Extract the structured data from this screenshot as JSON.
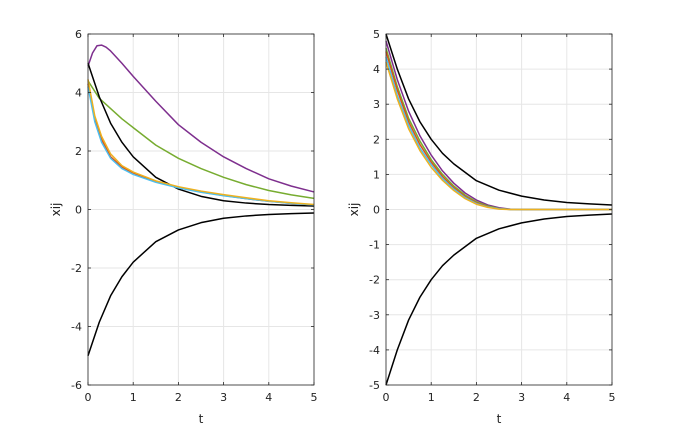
{
  "chart_data": [
    {
      "type": "line",
      "xlabel": "t",
      "ylabel": "xij",
      "xlim": [
        0,
        5
      ],
      "ylim": [
        -6,
        6
      ],
      "xticks": [
        "0",
        "1",
        "2",
        "3",
        "4",
        "5"
      ],
      "yticks": [
        "-6",
        "-4",
        "-2",
        "0",
        "2",
        "4",
        "6"
      ],
      "grid": true,
      "series": [
        {
          "color": "#7e2f8e",
          "x": [
            0,
            0.1,
            0.2,
            0.3,
            0.4,
            0.5,
            0.75,
            1,
            1.5,
            2,
            2.5,
            3,
            3.5,
            4,
            4.5,
            5
          ],
          "y": [
            4.9,
            5.35,
            5.6,
            5.62,
            5.55,
            5.42,
            5.0,
            4.55,
            3.7,
            2.9,
            2.3,
            1.8,
            1.4,
            1.05,
            0.8,
            0.6
          ]
        },
        {
          "color": "#77ac30",
          "x": [
            0,
            0.25,
            0.5,
            0.75,
            1,
            1.5,
            2,
            2.5,
            3,
            3.5,
            4,
            4.5,
            5
          ],
          "y": [
            4.4,
            3.8,
            3.45,
            3.1,
            2.8,
            2.2,
            1.75,
            1.4,
            1.1,
            0.85,
            0.65,
            0.5,
            0.38
          ]
        },
        {
          "color": "#000000",
          "x": [
            0,
            0.25,
            0.5,
            0.75,
            1,
            1.5,
            2,
            2.5,
            3,
            3.5,
            4,
            4.5,
            5
          ],
          "y": [
            5.0,
            3.85,
            2.95,
            2.3,
            1.8,
            1.1,
            0.7,
            0.45,
            0.3,
            0.22,
            0.17,
            0.14,
            0.12
          ]
        },
        {
          "color": "#d95319",
          "x": [
            0,
            0.15,
            0.3,
            0.5,
            0.75,
            1,
            1.5,
            2,
            2.5,
            3,
            3.5,
            4,
            4.5,
            5
          ],
          "y": [
            4.3,
            3.1,
            2.4,
            1.8,
            1.45,
            1.25,
            0.95,
            0.75,
            0.6,
            0.48,
            0.37,
            0.28,
            0.21,
            0.16
          ]
        },
        {
          "color": "#4dbeee",
          "x": [
            0,
            0.15,
            0.3,
            0.5,
            0.75,
            1,
            1.5,
            2,
            2.5,
            3,
            3.5,
            4,
            4.5,
            5
          ],
          "y": [
            4.2,
            3.0,
            2.3,
            1.75,
            1.4,
            1.2,
            0.93,
            0.74,
            0.59,
            0.47,
            0.37,
            0.28,
            0.21,
            0.16
          ]
        },
        {
          "color": "#edb120",
          "x": [
            0,
            0.15,
            0.3,
            0.5,
            0.75,
            1,
            1.5,
            2,
            2.5,
            3,
            3.5,
            4,
            4.5,
            5
          ],
          "y": [
            4.45,
            3.2,
            2.5,
            1.9,
            1.5,
            1.28,
            0.98,
            0.78,
            0.63,
            0.51,
            0.4,
            0.3,
            0.23,
            0.17
          ]
        },
        {
          "color": "#000000",
          "x": [
            0,
            0.25,
            0.5,
            0.75,
            1,
            1.5,
            2,
            2.5,
            3,
            3.5,
            4,
            4.5,
            5
          ],
          "y": [
            -5.0,
            -3.85,
            -2.95,
            -2.3,
            -1.8,
            -1.1,
            -0.7,
            -0.45,
            -0.3,
            -0.22,
            -0.17,
            -0.14,
            -0.12
          ]
        }
      ]
    },
    {
      "type": "line",
      "xlabel": "t",
      "ylabel": "xij",
      "xlim": [
        0,
        5
      ],
      "ylim": [
        -5,
        5
      ],
      "xticks": [
        "0",
        "1",
        "2",
        "3",
        "4",
        "5"
      ],
      "yticks": [
        "-5",
        "-4",
        "-3",
        "-2",
        "-1",
        "0",
        "1",
        "2",
        "3",
        "4",
        "5"
      ],
      "grid": true,
      "series": [
        {
          "color": "#000000",
          "x": [
            0,
            0.25,
            0.5,
            0.75,
            1,
            1.25,
            1.5,
            2,
            2.5,
            3,
            3.5,
            4,
            4.5,
            5
          ],
          "y": [
            5.0,
            4.0,
            3.15,
            2.5,
            2.0,
            1.6,
            1.3,
            0.82,
            0.55,
            0.38,
            0.27,
            0.2,
            0.16,
            0.13
          ]
        },
        {
          "color": "#7e2f8e",
          "x": [
            0,
            0.25,
            0.5,
            0.75,
            1,
            1.25,
            1.5,
            1.75,
            2,
            2.25,
            2.5,
            2.75,
            3,
            3.5,
            4,
            4.5,
            5
          ],
          "y": [
            4.8,
            3.7,
            2.8,
            2.1,
            1.55,
            1.1,
            0.75,
            0.47,
            0.27,
            0.13,
            0.05,
            0.01,
            0.0,
            0.0,
            0.0,
            0.0,
            0.0
          ]
        },
        {
          "color": "#77ac30",
          "x": [
            0,
            0.25,
            0.5,
            0.75,
            1,
            1.25,
            1.5,
            1.75,
            2,
            2.25,
            2.5,
            2.75,
            3,
            3.5,
            4,
            4.5,
            5
          ],
          "y": [
            4.6,
            3.5,
            2.6,
            1.95,
            1.42,
            1.0,
            0.67,
            0.41,
            0.22,
            0.1,
            0.03,
            0.005,
            0.0,
            0.0,
            0.0,
            0.0,
            0.0
          ]
        },
        {
          "color": "#d95319",
          "x": [
            0,
            0.25,
            0.5,
            0.75,
            1,
            1.25,
            1.5,
            1.75,
            2,
            2.25,
            2.5,
            2.75,
            3,
            3.5,
            4,
            4.5,
            5
          ],
          "y": [
            4.5,
            3.4,
            2.5,
            1.85,
            1.35,
            0.94,
            0.62,
            0.37,
            0.19,
            0.08,
            0.02,
            0.0,
            0.0,
            0.0,
            0.0,
            0.0,
            0.0
          ]
        },
        {
          "color": "#4dbeee",
          "x": [
            0,
            0.25,
            0.5,
            0.75,
            1,
            1.25,
            1.5,
            1.75,
            2,
            2.25,
            2.5,
            2.75,
            3,
            3.5,
            4,
            4.5,
            5
          ],
          "y": [
            4.35,
            3.25,
            2.4,
            1.75,
            1.28,
            0.88,
            0.58,
            0.34,
            0.17,
            0.07,
            0.02,
            0.0,
            0.0,
            0.0,
            0.0,
            0.0,
            0.0
          ]
        },
        {
          "color": "#edb120",
          "x": [
            0,
            0.25,
            0.5,
            0.75,
            1,
            1.25,
            1.5,
            1.75,
            2,
            2.25,
            2.5,
            2.75,
            3,
            3.5,
            4,
            4.5,
            5
          ],
          "y": [
            4.2,
            3.15,
            2.3,
            1.68,
            1.2,
            0.83,
            0.54,
            0.31,
            0.15,
            0.06,
            0.01,
            0.0,
            0.0,
            0.0,
            0.0,
            0.0,
            0.0
          ]
        },
        {
          "color": "#000000",
          "x": [
            0,
            0.25,
            0.5,
            0.75,
            1,
            1.25,
            1.5,
            2,
            2.5,
            3,
            3.5,
            4,
            4.5,
            5
          ],
          "y": [
            -5.0,
            -4.0,
            -3.15,
            -2.5,
            -2.0,
            -1.6,
            -1.3,
            -0.82,
            -0.55,
            -0.38,
            -0.27,
            -0.2,
            -0.16,
            -0.13
          ]
        }
      ]
    }
  ]
}
